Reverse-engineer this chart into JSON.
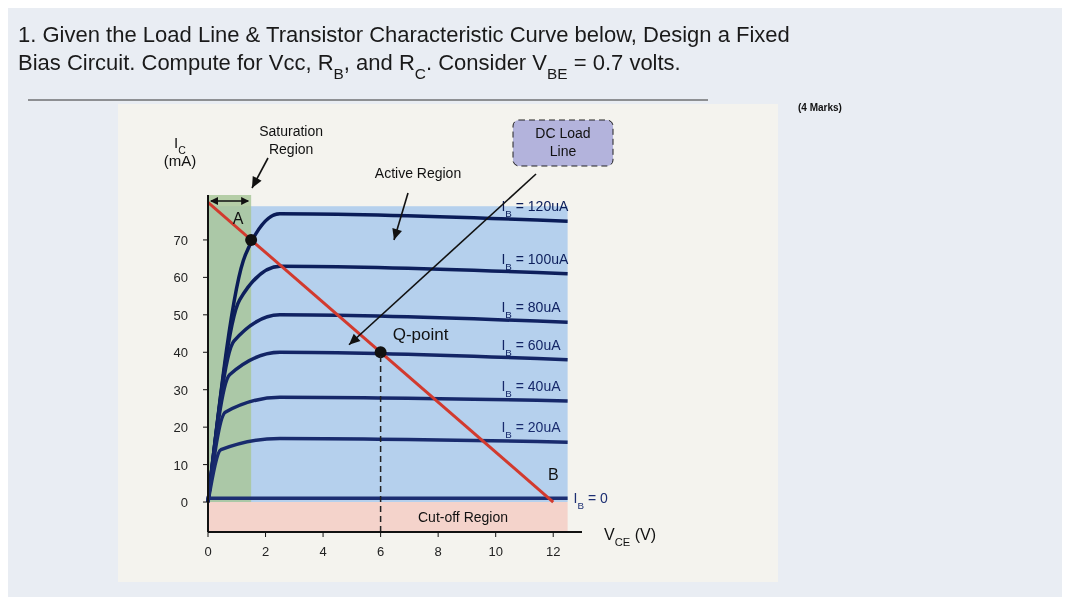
{
  "chart_data": {
    "type": "line",
    "title": "1. Given the Load Line & Transistor Characteristic Curve below, Design a Fixed Bias Circuit. Compute for Vcc, R$_{B}$, and R$_{C}$. Consider V$_{BE}$ = 0.7 volts.",
    "xlabel": "V$_{CE}$ (V)",
    "ylabel": "I$_{C}$ (mA)",
    "xlim": [
      0,
      13
    ],
    "ylim": [
      -8,
      82
    ],
    "xticks": [
      0,
      2,
      4,
      6,
      8,
      10,
      12
    ],
    "yticks": [
      0,
      10,
      20,
      30,
      40,
      50,
      60,
      70
    ],
    "line_style": "solid",
    "marker": "none",
    "series": [
      {
        "name": "I$_{B}$ = 120uA",
        "color": "#0a1c58",
        "x": [
          0,
          1.3,
          2.5,
          12.5
        ],
        "values": [
          0,
          66,
          77,
          75
        ]
      },
      {
        "name": "I$_{B}$ = 100uA",
        "color": "#0d1f5c",
        "x": [
          0,
          1.1,
          2.5,
          12.5
        ],
        "values": [
          0,
          54,
          63,
          61
        ]
      },
      {
        "name": "I$_{B}$ = 80uA",
        "color": "#102262",
        "x": [
          0,
          0.9,
          2.5,
          12.5
        ],
        "values": [
          0,
          43,
          50,
          48
        ]
      },
      {
        "name": "I$_{B}$ = 60uA",
        "color": "#132566",
        "x": [
          0,
          0.75,
          2.5,
          12.5
        ],
        "values": [
          0,
          34,
          40,
          38
        ]
      },
      {
        "name": "I$_{B}$ = 40uA",
        "color": "#16286a",
        "x": [
          0,
          0.6,
          2.5,
          12.5
        ],
        "values": [
          0,
          24,
          28,
          27
        ]
      },
      {
        "name": "I$_{B}$ = 20uA",
        "color": "#192b6e",
        "x": [
          0,
          0.45,
          2.5,
          12.5
        ],
        "values": [
          0,
          14,
          17,
          16
        ]
      },
      {
        "name": "I$_{B}$ = 0",
        "color": "#1c2e72",
        "x": [
          0,
          12.5
        ],
        "values": [
          1,
          1
        ]
      },
      {
        "type": "line",
        "color": "#d23a2e",
        "x": [
          0,
          12
        ],
        "values": [
          80,
          0
        ]
      },
      {
        "type": "scatter",
        "marker": "circle",
        "color": "#111111",
        "x": [
          1.5,
          6
        ],
        "values": [
          70,
          40
        ]
      }
    ],
    "bands": [
      {
        "axis": "y",
        "from": 0,
        "to": 79,
        "label": "Active Region",
        "color": "#a9c9ec"
      },
      {
        "axis": "x",
        "from": 0,
        "to": 1.5,
        "label": "Saturation Region",
        "color": "#a9c79a"
      },
      {
        "axis": "y",
        "from": -8,
        "to": 0,
        "label": "Cut-off Region",
        "color": "#f3cdc4"
      }
    ],
    "ref_lines": [
      {
        "axis": "x",
        "value": 6,
        "label": null,
        "line_style": "dashed",
        "color": "#222222"
      }
    ],
    "annotations": [
      "DC Load Line",
      {
        "text": "Q-point",
        "x": 6,
        "y": 40
      },
      {
        "text": "A",
        "x": 0,
        "y": 80
      },
      {
        "text": "B",
        "x": 12,
        "y": 0
      },
      "(4 Marks)"
    ]
  }
}
